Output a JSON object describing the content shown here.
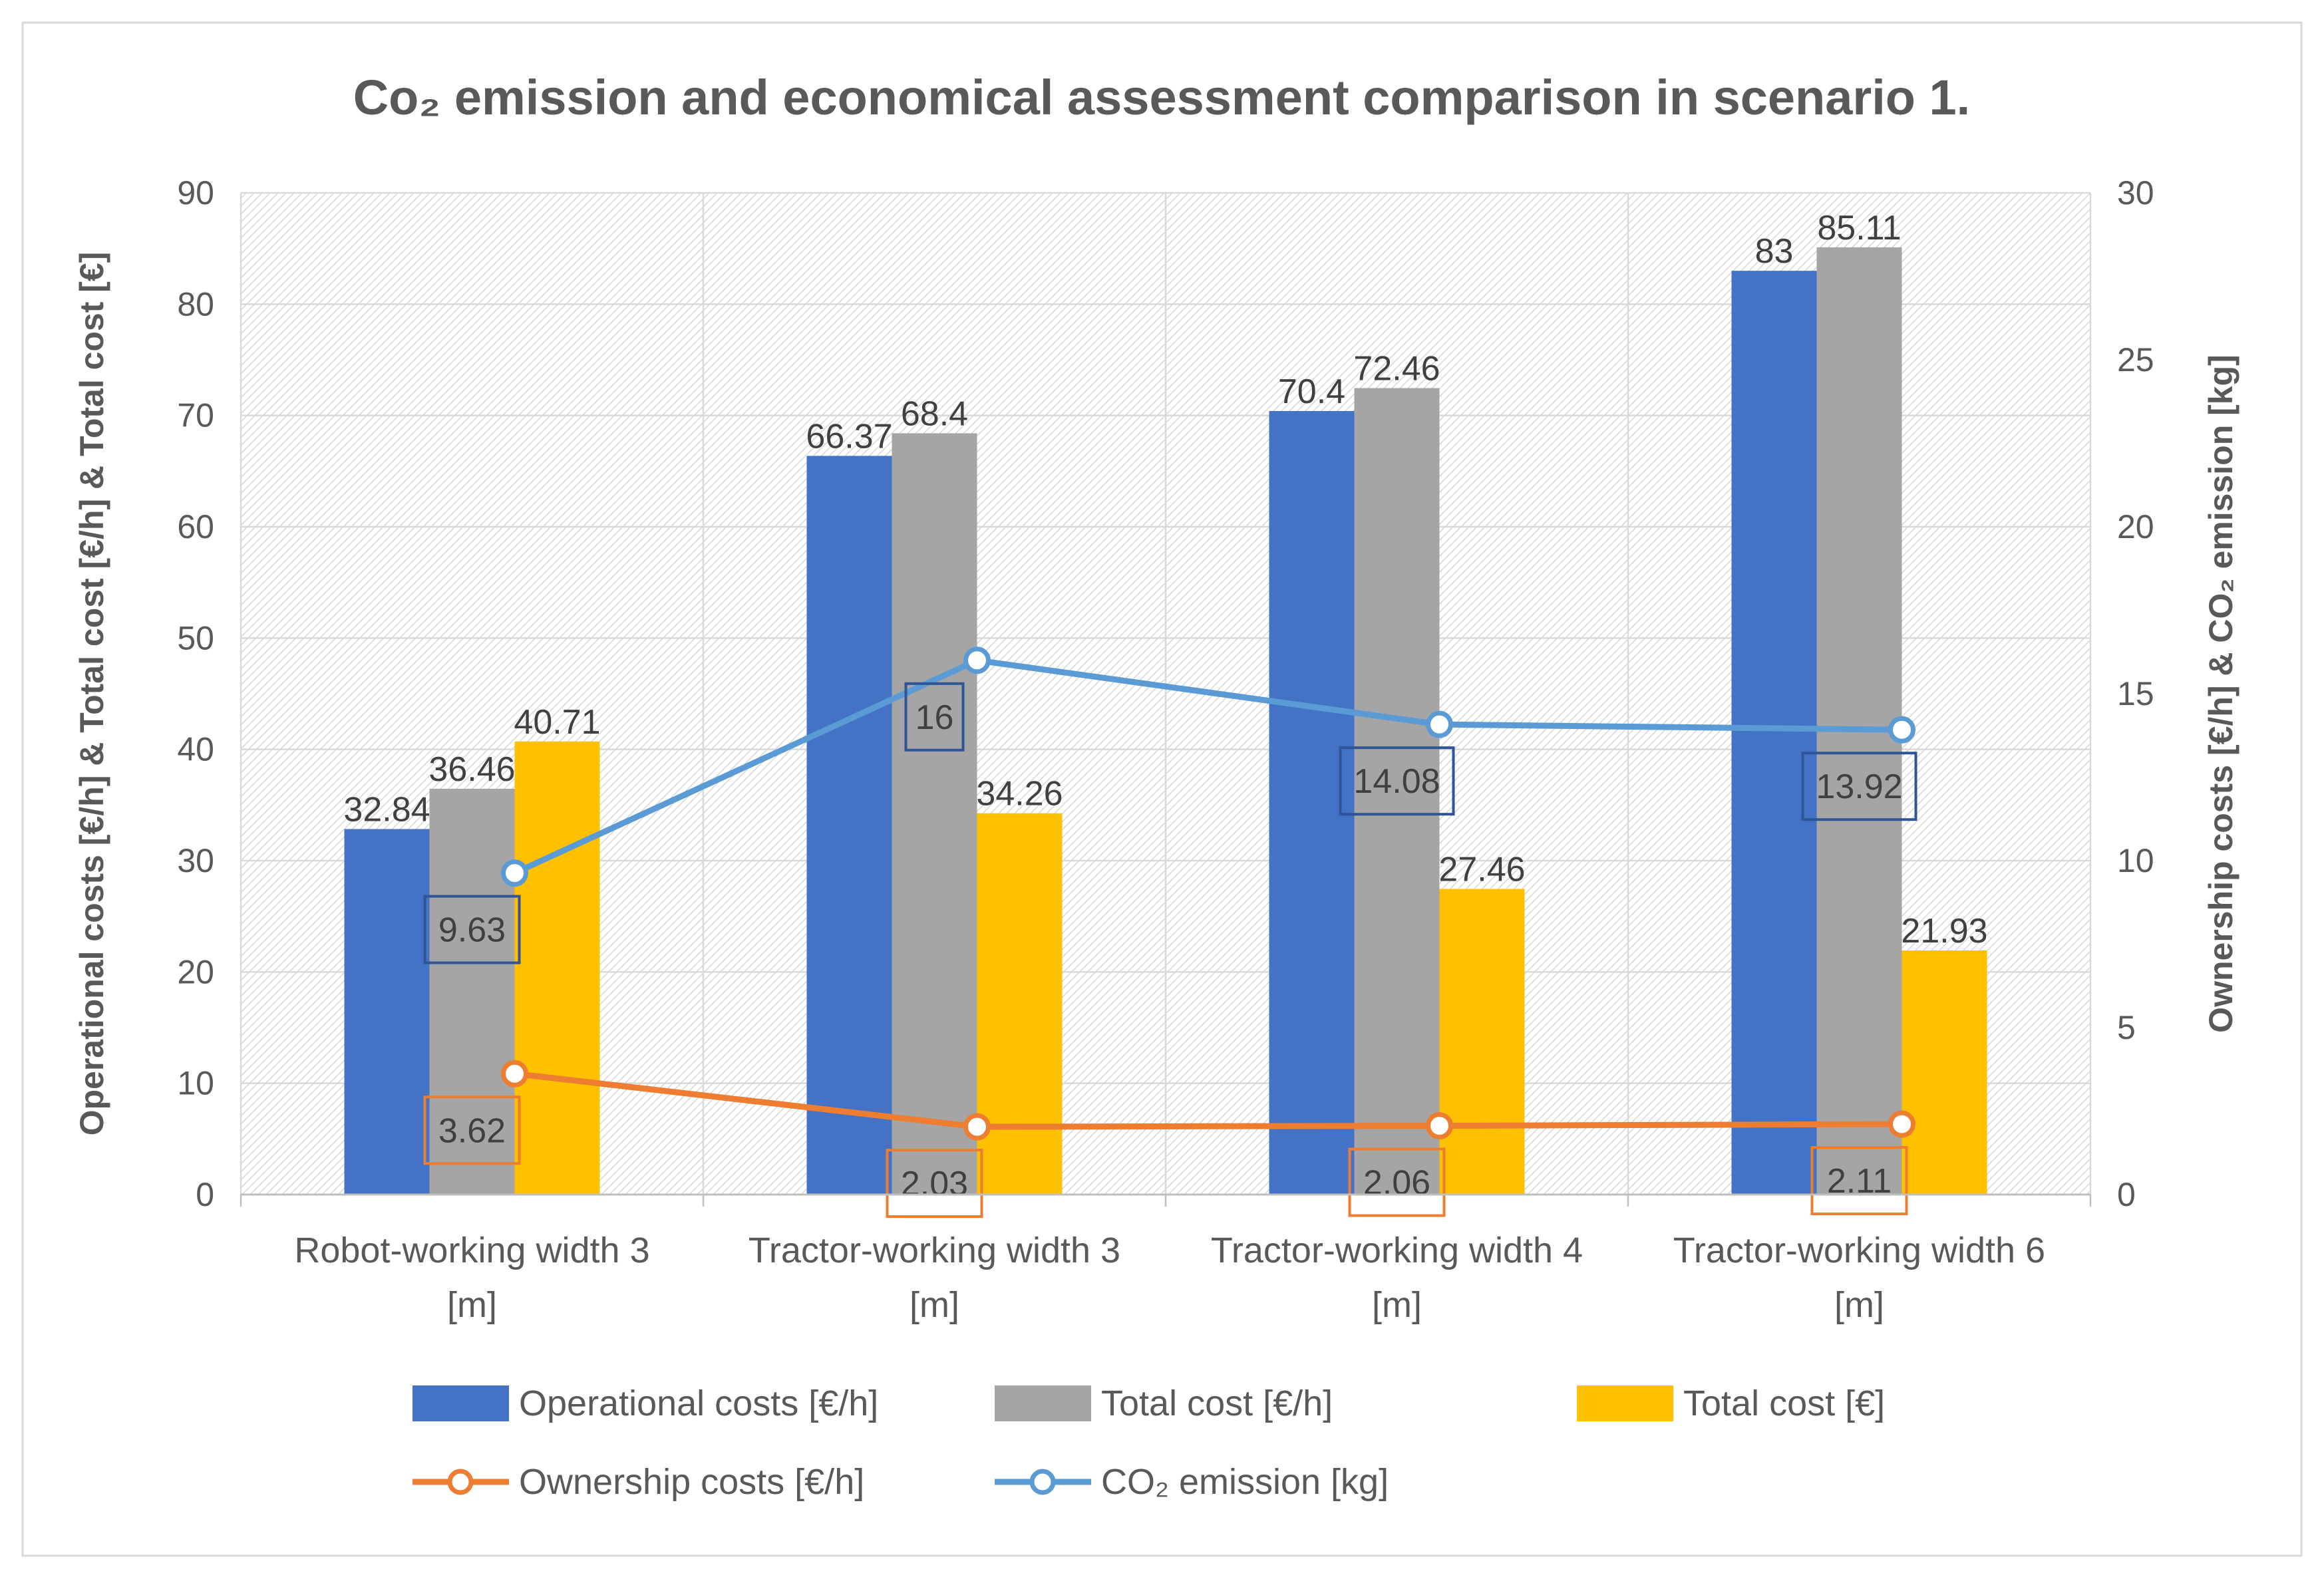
{
  "chart_data": {
    "type": "bar",
    "title": "Co₂ emission and economical assessment comparison in scenario 1.",
    "categories": [
      [
        "Robot-working width 3",
        "[m]"
      ],
      [
        "Tractor-working width 3",
        "[m]"
      ],
      [
        "Tractor-working width 4",
        "[m]"
      ],
      [
        "Tractor-working width 6",
        "[m]"
      ]
    ],
    "ylabel": "Operational costs [€/h] & Total cost [€/h] & Total cost [€]",
    "y2label": "Ownership costs [€/h] & CO₂ emission [kg]",
    "ylim": [
      0,
      90
    ],
    "y2lim": [
      0,
      30
    ],
    "yticks": [
      "0",
      "10",
      "20",
      "30",
      "40",
      "50",
      "60",
      "70",
      "80",
      "90"
    ],
    "y2ticks": [
      "0",
      "5",
      "10",
      "15",
      "20",
      "25",
      "30"
    ],
    "grid": true,
    "legend_position": "bottom",
    "series": [
      {
        "name": "Operational costs [€/h]",
        "kind": "bar",
        "axis": "left",
        "color": "#4472C4",
        "values": [
          32.84,
          66.37,
          70.4,
          83
        ],
        "labels": [
          "32.84",
          "66.37",
          "70.4",
          "83"
        ]
      },
      {
        "name": "Total cost [€/h]",
        "kind": "bar",
        "axis": "left",
        "color": "#A5A5A5",
        "values": [
          36.46,
          68.4,
          72.46,
          85.11
        ],
        "labels": [
          "36.46",
          "68.4",
          "72.46",
          "85.11"
        ]
      },
      {
        "name": "Total cost [€]",
        "kind": "bar",
        "axis": "left",
        "color": "#FFC000",
        "values": [
          40.71,
          34.26,
          27.46,
          21.93
        ],
        "labels": [
          "40.71",
          "34.26",
          "27.46",
          "21.93"
        ]
      },
      {
        "name": "Ownership costs [€/h]",
        "kind": "line",
        "axis": "right",
        "color": "#ED7D31",
        "values": [
          3.62,
          2.03,
          2.06,
          2.11
        ],
        "labels": [
          "3.62",
          "2.03",
          "2.06",
          "2.11"
        ]
      },
      {
        "name": "CO₂ emission [kg]",
        "kind": "line",
        "axis": "right",
        "color": "#5B9BD5",
        "values": [
          9.63,
          16,
          14.08,
          13.92
        ],
        "labels": [
          "9.63",
          "16",
          "14.08",
          "13.92"
        ]
      }
    ]
  }
}
